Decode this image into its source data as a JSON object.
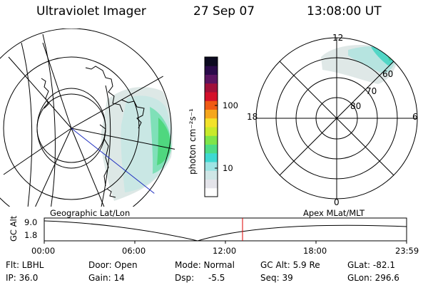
{
  "header": {
    "instrument": "Ultraviolet Imager",
    "date": "27 Sep 07",
    "time": "13:08:00 UT"
  },
  "colorbar": {
    "label": "photon cm⁻²s⁻¹",
    "ticks": [
      "100",
      "10"
    ],
    "colors": [
      "#ffffff",
      "#e4e4ea",
      "#cfe6e6",
      "#9ee3e3",
      "#3fd9d2",
      "#4ddc86",
      "#7ee54a",
      "#c8ea2a",
      "#f2e22a",
      "#f5a61c",
      "#ef5a14",
      "#d4102a",
      "#a0103a",
      "#5a1460",
      "#2a0a4a",
      "#0c0a20"
    ]
  },
  "polar": {
    "mlt_top": "12",
    "mlt_left": "18",
    "mlt_right": "6",
    "mlt_bottom": "0",
    "lat_labels": [
      "60",
      "70",
      "80"
    ]
  },
  "timeline": {
    "left_title": "Geographic Lat/Lon",
    "right_title": "Apex MLat/MLT",
    "y_axis_label": "GC Alt",
    "y_ticks": [
      "9.0",
      "1.8"
    ],
    "x_ticks": [
      "00:00",
      "06:00",
      "12:00",
      "18:00",
      "23:59"
    ],
    "current_time_fraction": 0.5472
  },
  "info": {
    "filter": "Flt: LBHL",
    "ip": "IP: 36.0",
    "door": "Door: Open",
    "gain": "Gain: 14",
    "mode": "Mode: Normal",
    "dsp": "Dsp:",
    "dsp_value": "-5.5",
    "gc_alt": "GC Alt: 5.9 Re",
    "seq": "Seq: 39",
    "glat": "GLat: -82.1",
    "glon": "GLon: 296.6"
  }
}
